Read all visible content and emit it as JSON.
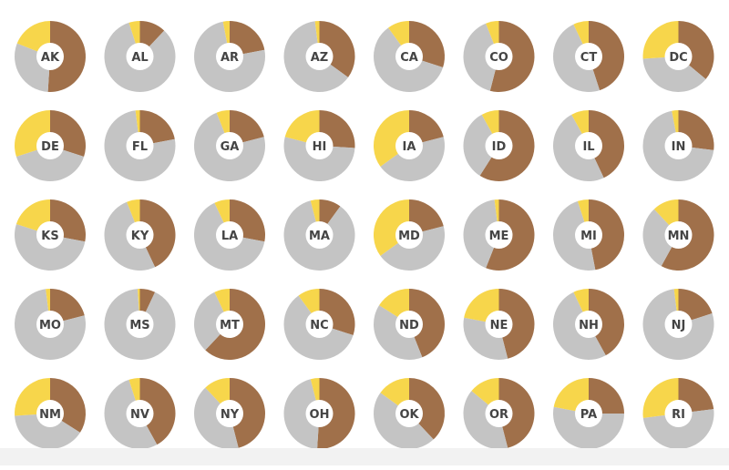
{
  "chart_data": {
    "type": "pie",
    "variant": "donut-small-multiples",
    "colors": {
      "brown": "#a0704a",
      "gray": "#c4c4c4",
      "yellow": "#f7d64b",
      "hole": "#ffffff"
    },
    "segment_order": [
      "brown",
      "gray",
      "yellow"
    ],
    "items": [
      {
        "label": "AK",
        "values": [
          51,
          30,
          19
        ]
      },
      {
        "label": "AL",
        "values": [
          12,
          83,
          5
        ]
      },
      {
        "label": "AR",
        "values": [
          22,
          75,
          3
        ]
      },
      {
        "label": "AZ",
        "values": [
          35,
          63,
          2
        ]
      },
      {
        "label": "CA",
        "values": [
          30,
          60,
          10
        ]
      },
      {
        "label": "CO",
        "values": [
          54,
          40,
          6
        ]
      },
      {
        "label": "CT",
        "values": [
          45,
          48,
          7
        ]
      },
      {
        "label": "DC",
        "values": [
          36,
          38,
          26
        ]
      },
      {
        "label": "DE",
        "values": [
          30,
          40,
          30
        ]
      },
      {
        "label": "FL",
        "values": [
          22,
          76,
          2
        ]
      },
      {
        "label": "GA",
        "values": [
          21,
          73,
          6
        ]
      },
      {
        "label": "HI",
        "values": [
          26,
          53,
          21
        ]
      },
      {
        "label": "IA",
        "values": [
          21,
          44,
          35
        ]
      },
      {
        "label": "ID",
        "values": [
          59,
          33,
          8
        ]
      },
      {
        "label": "IL",
        "values": [
          43,
          49,
          8
        ]
      },
      {
        "label": "IN",
        "values": [
          27,
          70,
          3
        ]
      },
      {
        "label": "KS",
        "values": [
          28,
          52,
          20
        ]
      },
      {
        "label": "KY",
        "values": [
          43,
          51,
          6
        ]
      },
      {
        "label": "LA",
        "values": [
          28,
          65,
          7
        ]
      },
      {
        "label": "MA",
        "values": [
          10,
          86,
          4
        ]
      },
      {
        "label": "MD",
        "values": [
          21,
          44,
          35
        ]
      },
      {
        "label": "ME",
        "values": [
          56,
          42,
          2
        ]
      },
      {
        "label": "MI",
        "values": [
          47,
          48,
          5
        ]
      },
      {
        "label": "MN",
        "values": [
          58,
          30,
          12
        ]
      },
      {
        "label": "MO",
        "values": [
          21,
          77,
          2
        ]
      },
      {
        "label": "MS",
        "values": [
          7,
          92,
          1
        ]
      },
      {
        "label": "MT",
        "values": [
          62,
          31,
          7
        ]
      },
      {
        "label": "NC",
        "values": [
          30,
          60,
          10
        ]
      },
      {
        "label": "ND",
        "values": [
          44,
          40,
          16
        ]
      },
      {
        "label": "NE",
        "values": [
          46,
          32,
          22
        ]
      },
      {
        "label": "NH",
        "values": [
          42,
          51,
          7
        ]
      },
      {
        "label": "NJ",
        "values": [
          20,
          78,
          2
        ]
      },
      {
        "label": "NM",
        "values": [
          34,
          40,
          26
        ]
      },
      {
        "label": "NV",
        "values": [
          42,
          53,
          5
        ]
      },
      {
        "label": "NY",
        "values": [
          46,
          42,
          12
        ]
      },
      {
        "label": "OH",
        "values": [
          51,
          45,
          4
        ]
      },
      {
        "label": "OK",
        "values": [
          38,
          47,
          15
        ]
      },
      {
        "label": "OR",
        "values": [
          46,
          40,
          14
        ]
      },
      {
        "label": "PA",
        "values": [
          25,
          53,
          22
        ]
      },
      {
        "label": "RI",
        "values": [
          23,
          50,
          27
        ]
      }
    ]
  }
}
